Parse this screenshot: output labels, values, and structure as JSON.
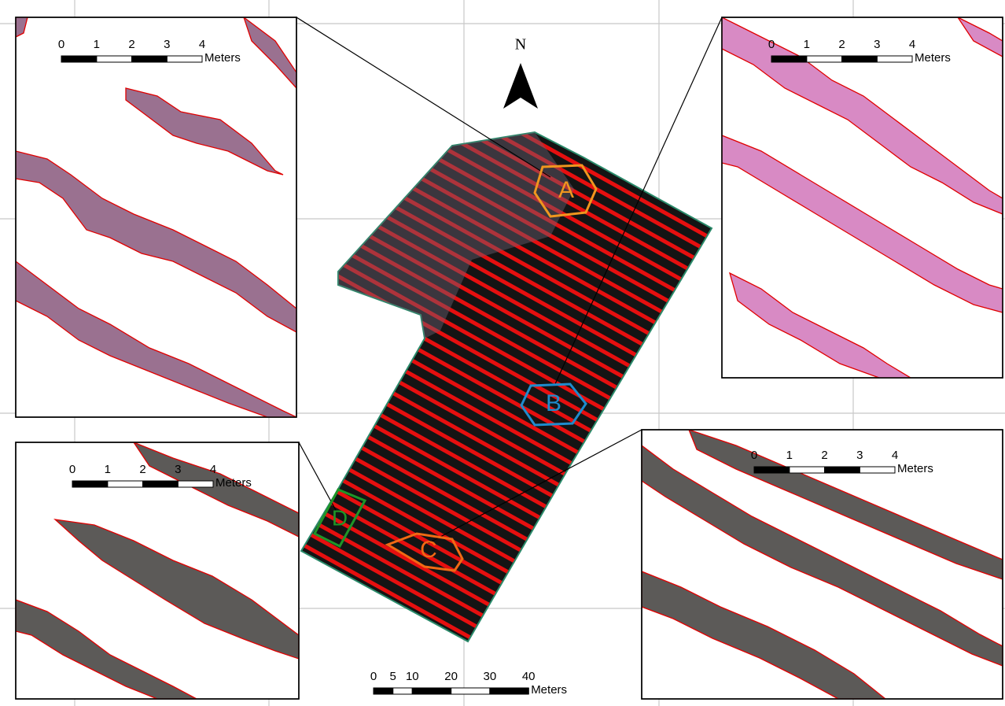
{
  "north_arrow": {
    "label": "N"
  },
  "main_map": {
    "zones": [
      {
        "label": "A"
      },
      {
        "label": "B"
      },
      {
        "label": "C"
      },
      {
        "label": "D"
      }
    ],
    "scale_bar": {
      "ticks": [
        0,
        5,
        10,
        20,
        30,
        40
      ],
      "unit": "Meters"
    }
  },
  "insets": [
    {
      "scale_bar": {
        "ticks": [
          0,
          1,
          2,
          3,
          4
        ],
        "unit": "Meters"
      }
    },
    {
      "scale_bar": {
        "ticks": [
          0,
          1,
          2,
          3,
          4
        ],
        "unit": "Meters"
      }
    },
    {
      "scale_bar": {
        "ticks": [
          0,
          1,
          2,
          3,
          4
        ],
        "unit": "Meters"
      }
    },
    {
      "scale_bar": {
        "ticks": [
          0,
          1,
          2,
          3,
          4
        ],
        "unit": "Meters"
      }
    }
  ]
}
